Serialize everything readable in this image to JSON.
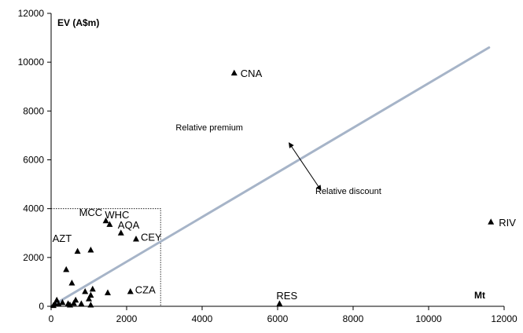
{
  "chart_data": {
    "type": "scatter",
    "ylabel": "EV (A$m)",
    "xlabel": "Mt",
    "xlim": [
      0,
      12000
    ],
    "ylim": [
      0,
      12000
    ],
    "x_ticks": [
      0,
      2000,
      4000,
      6000,
      8000,
      10000,
      12000
    ],
    "y_ticks": [
      0,
      2000,
      4000,
      6000,
      8000,
      10000,
      12000
    ],
    "grid": false,
    "legend": "none",
    "marker": "triangle",
    "marker_color": "#000000",
    "trendline": {
      "x": [
        0,
        11600
      ],
      "y": [
        0,
        10600
      ],
      "color": "#a6b4c8"
    },
    "points": [
      {
        "x": 4850,
        "y": 9550,
        "label": "CNA"
      },
      {
        "x": 11650,
        "y": 3450,
        "label": "RIV"
      },
      {
        "x": 6050,
        "y": 100,
        "label": "RES"
      },
      {
        "x": 2100,
        "y": 600,
        "label": "CZA"
      },
      {
        "x": 1450,
        "y": 3500,
        "label": "MCC"
      },
      {
        "x": 1550,
        "y": 3350,
        "label": "WHC"
      },
      {
        "x": 1850,
        "y": 3000,
        "label": "AQA"
      },
      {
        "x": 2250,
        "y": 2750,
        "label": "CEY"
      },
      {
        "x": 700,
        "y": 2250,
        "label": "AZT"
      },
      {
        "x": 1050,
        "y": 2300,
        "label": ""
      },
      {
        "x": 400,
        "y": 1500,
        "label": ""
      },
      {
        "x": 550,
        "y": 950,
        "label": ""
      },
      {
        "x": 900,
        "y": 600,
        "label": ""
      },
      {
        "x": 1050,
        "y": 450,
        "label": ""
      },
      {
        "x": 1100,
        "y": 700,
        "label": ""
      },
      {
        "x": 1000,
        "y": 300,
        "label": ""
      },
      {
        "x": 1500,
        "y": 550,
        "label": ""
      },
      {
        "x": 650,
        "y": 250,
        "label": ""
      },
      {
        "x": 800,
        "y": 100,
        "label": ""
      },
      {
        "x": 1050,
        "y": 50,
        "label": ""
      },
      {
        "x": 150,
        "y": 250,
        "label": ""
      },
      {
        "x": 100,
        "y": 100,
        "label": ""
      },
      {
        "x": 200,
        "y": 80,
        "label": ""
      },
      {
        "x": 60,
        "y": 30,
        "label": ""
      },
      {
        "x": 300,
        "y": 150,
        "label": ""
      },
      {
        "x": 450,
        "y": 100,
        "label": ""
      },
      {
        "x": 500,
        "y": 50,
        "label": ""
      },
      {
        "x": 600,
        "y": 120,
        "label": ""
      }
    ],
    "highlight_box": {
      "x": [
        0,
        2900
      ],
      "y": [
        0,
        4000
      ]
    },
    "annotations": [
      {
        "text": "Relative premium",
        "x": 3300,
        "y": 7200
      },
      {
        "text": "Relative discount",
        "x": 7000,
        "y": 4600
      }
    ],
    "arrow": {
      "from": [
        6300,
        6700
      ],
      "to": [
        7150,
        4750
      ]
    }
  }
}
